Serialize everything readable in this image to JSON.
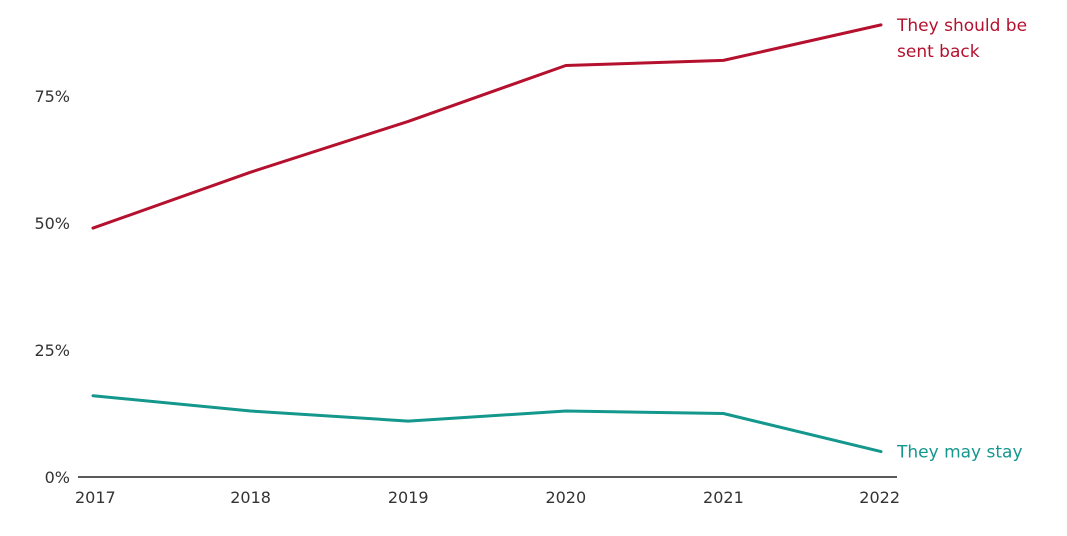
{
  "chart_data": {
    "type": "line",
    "x": [
      "2017",
      "2018",
      "2019",
      "2020",
      "2021",
      "2022"
    ],
    "ylim": [
      0,
      90
    ],
    "y_ticks": [
      {
        "value": 0,
        "label": "0%"
      },
      {
        "value": 25,
        "label": "25%"
      },
      {
        "value": 50,
        "label": "50%"
      },
      {
        "value": 75,
        "label": "75%"
      }
    ],
    "grid": false,
    "series": [
      {
        "name_lines": [
          "They should be",
          "sent back"
        ],
        "color": "#b5102e",
        "values": [
          49,
          60,
          70,
          81,
          82,
          89
        ]
      },
      {
        "name_lines": [
          "They may stay"
        ],
        "color": "#14978c",
        "values": [
          16,
          13,
          11,
          13,
          12.5,
          5
        ]
      }
    ]
  }
}
